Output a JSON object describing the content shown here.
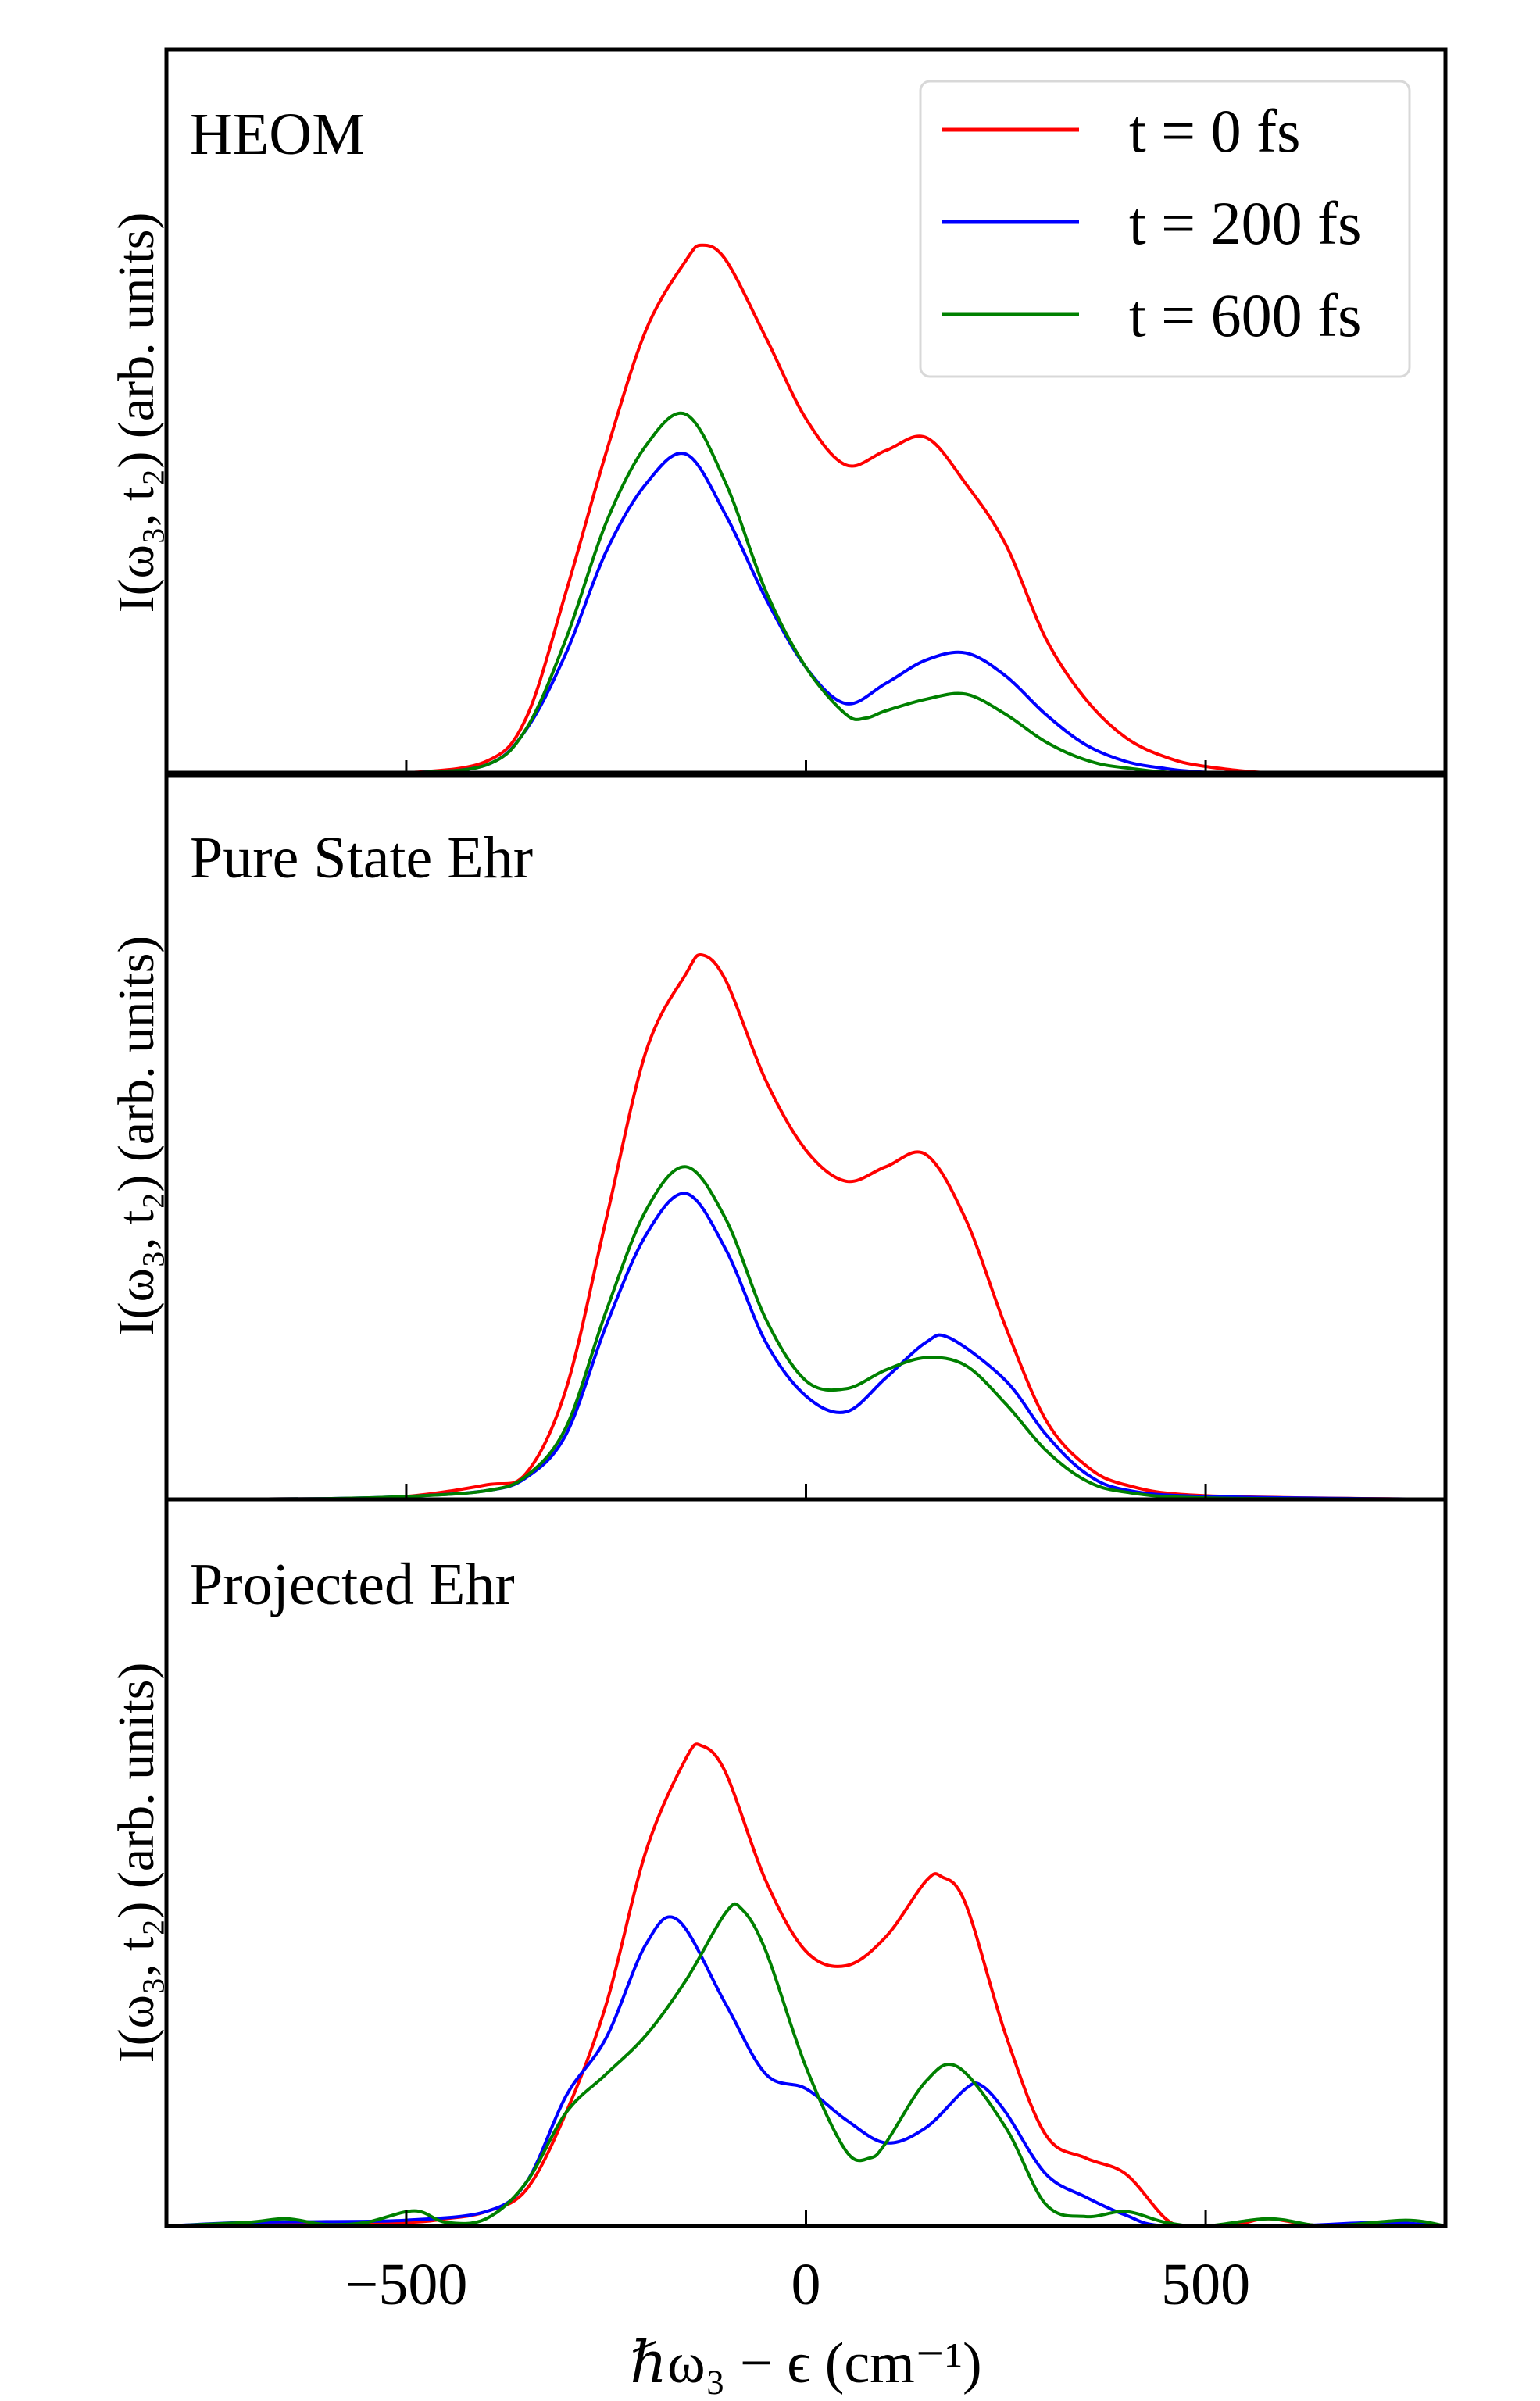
{
  "chart_data": {
    "type": "line",
    "layout": "three vertically stacked panels sharing x axis",
    "xlabel": "ℏω₃ − ϵ (cm⁻¹)",
    "ylabel": "I(ω₃, t₂) (arb. units)",
    "xlim": [
      -800,
      800
    ],
    "ylim": [
      0,
      1
    ],
    "xticks": [
      -500,
      0,
      500
    ],
    "xtick_labels": [
      "−500",
      "0",
      "500"
    ],
    "yticks": [],
    "grid": false,
    "legend": {
      "placement": "top-right",
      "panel": 0,
      "entries": [
        "t = 0 fs",
        "t = 200 fs",
        "t = 600 fs"
      ]
    },
    "series_colors": {
      "t = 0 fs": "#ff0000",
      "t = 200 fs": "#0000ff",
      "t = 600 fs": "#008000"
    },
    "panels": [
      {
        "title": "HEOM",
        "series": [
          {
            "name": "t = 0 fs",
            "color": "#ff0000",
            "points": [
              [
                -800,
                0
              ],
              [
                -600,
                0.001
              ],
              [
                -500,
                0.004
              ],
              [
                -400,
                0.02
              ],
              [
                -350,
                0.08
              ],
              [
                -300,
                0.255
              ],
              [
                -250,
                0.447
              ],
              [
                -200,
                0.617
              ],
              [
                -150,
                0.713
              ],
              [
                -130,
                0.734
              ],
              [
                -100,
                0.713
              ],
              [
                -50,
                0.606
              ],
              [
                0,
                0.494
              ],
              [
                50,
                0.43
              ],
              [
                100,
                0.45
              ],
              [
                150,
                0.468
              ],
              [
                200,
                0.404
              ],
              [
                250,
                0.32
              ],
              [
                300,
                0.19
              ],
              [
                350,
                0.106
              ],
              [
                400,
                0.053
              ],
              [
                450,
                0.026
              ],
              [
                500,
                0.013
              ],
              [
                600,
                0.003
              ],
              [
                800,
                0
              ]
            ]
          },
          {
            "name": "t = 200 fs",
            "color": "#0000ff",
            "points": [
              [
                -800,
                0
              ],
              [
                -600,
                0.001
              ],
              [
                -500,
                0.004
              ],
              [
                -400,
                0.015
              ],
              [
                -350,
                0.064
              ],
              [
                -300,
                0.17
              ],
              [
                -250,
                0.31
              ],
              [
                -200,
                0.404
              ],
              [
                -150,
                0.445
              ],
              [
                -100,
                0.36
              ],
              [
                -50,
                0.245
              ],
              [
                0,
                0.15
              ],
              [
                50,
                0.1
              ],
              [
                100,
                0.128
              ],
              [
                150,
                0.16
              ],
              [
                200,
                0.17
              ],
              [
                250,
                0.138
              ],
              [
                300,
                0.085
              ],
              [
                350,
                0.043
              ],
              [
                400,
                0.02
              ],
              [
                450,
                0.01
              ],
              [
                500,
                0.005
              ],
              [
                600,
                0.001
              ],
              [
                800,
                0
              ]
            ]
          },
          {
            "name": "t = 600 fs",
            "color": "#008000",
            "points": [
              [
                -800,
                0
              ],
              [
                -600,
                0.001
              ],
              [
                -500,
                0.004
              ],
              [
                -400,
                0.015
              ],
              [
                -350,
                0.065
              ],
              [
                -300,
                0.19
              ],
              [
                -250,
                0.35
              ],
              [
                -200,
                0.457
              ],
              [
                -150,
                0.5
              ],
              [
                -100,
                0.404
              ],
              [
                -50,
                0.255
              ],
              [
                0,
                0.15
              ],
              [
                50,
                0.085
              ],
              [
                75,
                0.08
              ],
              [
                100,
                0.09
              ],
              [
                150,
                0.106
              ],
              [
                200,
                0.113
              ],
              [
                250,
                0.085
              ],
              [
                300,
                0.047
              ],
              [
                350,
                0.022
              ],
              [
                400,
                0.011
              ],
              [
                500,
                0.003
              ],
              [
                800,
                0
              ]
            ]
          }
        ]
      },
      {
        "title": "Pure State Ehr",
        "series": [
          {
            "name": "t = 0 fs",
            "color": "#ff0000",
            "points": [
              [
                -800,
                0
              ],
              [
                -600,
                0.001
              ],
              [
                -500,
                0.004
              ],
              [
                -400,
                0.02
              ],
              [
                -350,
                0.036
              ],
              [
                -300,
                0.153
              ],
              [
                -250,
                0.387
              ],
              [
                -200,
                0.62
              ],
              [
                -150,
                0.727
              ],
              [
                -130,
                0.753
              ],
              [
                -100,
                0.717
              ],
              [
                -50,
                0.579
              ],
              [
                0,
                0.483
              ],
              [
                50,
                0.44
              ],
              [
                100,
                0.46
              ],
              [
                150,
                0.477
              ],
              [
                200,
                0.387
              ],
              [
                250,
                0.238
              ],
              [
                300,
                0.11
              ],
              [
                350,
                0.047
              ],
              [
                400,
                0.02
              ],
              [
                500,
                0.005
              ],
              [
                800,
                0
              ]
            ]
          },
          {
            "name": "t = 200 fs",
            "color": "#0000ff",
            "points": [
              [
                -800,
                0
              ],
              [
                -600,
                0.001
              ],
              [
                -500,
                0.004
              ],
              [
                -400,
                0.012
              ],
              [
                -350,
                0.03
              ],
              [
                -300,
                0.09
              ],
              [
                -250,
                0.24
              ],
              [
                -200,
                0.366
              ],
              [
                -150,
                0.423
              ],
              [
                -100,
                0.345
              ],
              [
                -50,
                0.217
              ],
              [
                0,
                0.143
              ],
              [
                50,
                0.121
              ],
              [
                100,
                0.168
              ],
              [
                150,
                0.217
              ],
              [
                180,
                0.223
              ],
              [
                250,
                0.164
              ],
              [
                300,
                0.09
              ],
              [
                350,
                0.036
              ],
              [
                400,
                0.013
              ],
              [
                500,
                0.004
              ],
              [
                800,
                0
              ]
            ]
          },
          {
            "name": "t = 600 fs",
            "color": "#008000",
            "points": [
              [
                -800,
                0
              ],
              [
                -600,
                0.001
              ],
              [
                -500,
                0.004
              ],
              [
                -400,
                0.012
              ],
              [
                -350,
                0.032
              ],
              [
                -300,
                0.1
              ],
              [
                -250,
                0.26
              ],
              [
                -200,
                0.4
              ],
              [
                -150,
                0.46
              ],
              [
                -100,
                0.387
              ],
              [
                -50,
                0.249
              ],
              [
                0,
                0.164
              ],
              [
                50,
                0.153
              ],
              [
                100,
                0.179
              ],
              [
                150,
                0.196
              ],
              [
                200,
                0.185
              ],
              [
                250,
                0.132
              ],
              [
                300,
                0.068
              ],
              [
                350,
                0.026
              ],
              [
                400,
                0.01
              ],
              [
                500,
                0.002
              ],
              [
                800,
                0
              ]
            ]
          }
        ]
      },
      {
        "title": "Projected Ehr",
        "series": [
          {
            "name": "t = 0 fs",
            "color": "#ff0000",
            "points": [
              [
                -800,
                0
              ],
              [
                -700,
                0.002
              ],
              [
                -600,
                0.005
              ],
              [
                -500,
                0.005
              ],
              [
                -450,
                0.01
              ],
              [
                -400,
                0.02
              ],
              [
                -350,
                0.05
              ],
              [
                -300,
                0.157
              ],
              [
                -250,
                0.306
              ],
              [
                -200,
                0.519
              ],
              [
                -150,
                0.647
              ],
              [
                -130,
                0.664
              ],
              [
                -100,
                0.626
              ],
              [
                -50,
                0.477
              ],
              [
                0,
                0.38
              ],
              [
                50,
                0.36
              ],
              [
                100,
                0.4
              ],
              [
                150,
                0.477
              ],
              [
                170,
                0.483
              ],
              [
                200,
                0.445
              ],
              [
                250,
                0.264
              ],
              [
                300,
                0.126
              ],
              [
                350,
                0.094
              ],
              [
                400,
                0.072
              ],
              [
                450,
                0.01
              ],
              [
                480,
                0
              ],
              [
                540,
                0.003
              ],
              [
                580,
                0.01
              ],
              [
                650,
                0
              ],
              [
                800,
                0
              ]
            ]
          },
          {
            "name": "t = 200 fs",
            "color": "#0000ff",
            "points": [
              [
                -800,
                0
              ],
              [
                -700,
                0.005
              ],
              [
                -600,
                0.006
              ],
              [
                -500,
                0.008
              ],
              [
                -400,
                0.02
              ],
              [
                -350,
                0.06
              ],
              [
                -300,
                0.18
              ],
              [
                -250,
                0.26
              ],
              [
                -200,
                0.39
              ],
              [
                -160,
                0.423
              ],
              [
                -100,
                0.306
              ],
              [
                -50,
                0.21
              ],
              [
                0,
                0.19
              ],
              [
                50,
                0.147
              ],
              [
                100,
                0.115
              ],
              [
                150,
                0.136
              ],
              [
                200,
                0.19
              ],
              [
                220,
                0.194
              ],
              [
                250,
                0.157
              ],
              [
                300,
                0.072
              ],
              [
                350,
                0.04
              ],
              [
                400,
                0.015
              ],
              [
                450,
                0
              ],
              [
                600,
                0
              ],
              [
                720,
                0.005
              ],
              [
                800,
                0
              ]
            ]
          },
          {
            "name": "t = 600 fs",
            "color": "#008000",
            "points": [
              [
                -800,
                0
              ],
              [
                -700,
                0.005
              ],
              [
                -650,
                0.01
              ],
              [
                -600,
                0.002
              ],
              [
                -550,
                0.005
              ],
              [
                -490,
                0.021
              ],
              [
                -450,
                0.005
              ],
              [
                -400,
                0.01
              ],
              [
                -350,
                0.06
              ],
              [
                -300,
                0.157
              ],
              [
                -250,
                0.21
              ],
              [
                -200,
                0.264
              ],
              [
                -150,
                0.34
              ],
              [
                -100,
                0.434
              ],
              [
                -80,
                0.438
              ],
              [
                -50,
                0.38
              ],
              [
                0,
                0.22
              ],
              [
                50,
                0.104
              ],
              [
                80,
                0.094
              ],
              [
                100,
                0.115
              ],
              [
                150,
                0.2
              ],
              [
                190,
                0.22
              ],
              [
                250,
                0.136
              ],
              [
                300,
                0.03
              ],
              [
                350,
                0.013
              ],
              [
                400,
                0.02
              ],
              [
                450,
                0.005
              ],
              [
                500,
                0
              ],
              [
                580,
                0.01
              ],
              [
                650,
                0
              ],
              [
                750,
                0.008
              ],
              [
                800,
                0
              ]
            ]
          }
        ]
      }
    ]
  }
}
